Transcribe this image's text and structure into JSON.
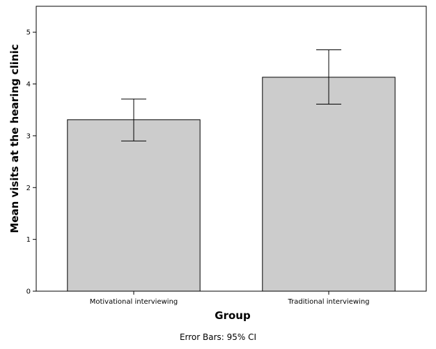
{
  "chart_data": {
    "type": "bar",
    "title": "",
    "xlabel": "Group",
    "ylabel": "Mean visits at the hearing clinic",
    "ylim": [
      0,
      5.5
    ],
    "yticks": [
      "0",
      "1",
      "2",
      "3",
      "4",
      "5"
    ],
    "grid": false,
    "categories": [
      "Motivational interviewing",
      "Traditional interviewing"
    ],
    "values": [
      3.31,
      4.13
    ],
    "error_lower": [
      2.9,
      3.61
    ],
    "error_upper": [
      3.71,
      4.66
    ],
    "bar_color": "#cccccc",
    "footer": "Error Bars: 95% CI"
  }
}
